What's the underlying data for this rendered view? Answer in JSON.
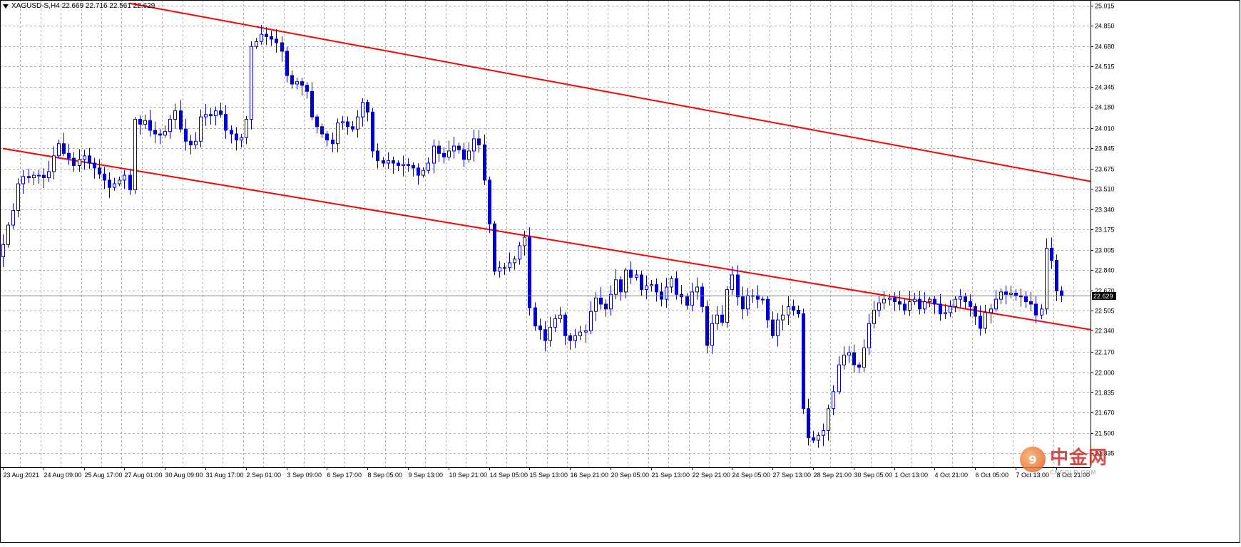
{
  "header": {
    "symbol_line": "XAGUSD-S,H4  22.669 22.716 22.561 22.629"
  },
  "watermark": {
    "logo_glyph": "9",
    "name": "中金网",
    "url": "CNGOLD.COM"
  },
  "colors": {
    "candle": "#0000cc",
    "trendline": "#ff0000",
    "grid": "#b0b0b0",
    "current_price_line": "#708090",
    "current_price_label_bg": "#000000",
    "current_price_label_text": "#ffffff"
  },
  "chart_data": {
    "type": "candlestick",
    "symbol": "XAGUSD-S",
    "timeframe": "H4",
    "ohlc_header": {
      "open": 22.669,
      "high": 22.716,
      "low": 22.561,
      "close": 22.629
    },
    "current_price": 22.629,
    "current_price_label": "22.629",
    "ylim": [
      21.36,
      25.05
    ],
    "y_ticks": [
      "25.015",
      "24.850",
      "24.680",
      "24.515",
      "24.345",
      "24.180",
      "24.010",
      "23.845",
      "23.675",
      "23.510",
      "23.340",
      "23.175",
      "23.005",
      "22.840",
      "22.670",
      "22.505",
      "22.340",
      "22.170",
      "22.000",
      "21.835",
      "21.670",
      "21.500",
      "21.335"
    ],
    "x_labels": [
      "23 Aug 2021",
      "24 Aug 09:00",
      "25 Aug 17:00",
      "27 Aug 01:00",
      "30 Aug 09:00",
      "31 Aug 17:00",
      "2 Sep 01:00",
      "3 Sep 09:00",
      "6 Sep 17:00",
      "8 Sep 05:00",
      "9 Sep 13:00",
      "10 Sep 21:00",
      "14 Sep 05:00",
      "15 Sep 13:00",
      "16 Sep 21:00",
      "20 Sep 05:00",
      "21 Sep 13:00",
      "22 Sep 21:00",
      "24 Sep 05:00",
      "27 Sep 13:00",
      "28 Sep 21:00",
      "30 Sep 05:00",
      "1 Oct 13:00",
      "4 Oct 21:00",
      "6 Oct 05:00",
      "7 Oct 13:00",
      "8 Oct 21:00"
    ],
    "bars_per_label": 8,
    "closes": [
      23.05,
      23.21,
      23.33,
      23.55,
      23.61,
      23.6,
      23.62,
      23.62,
      23.6,
      23.65,
      23.78,
      23.88,
      23.8,
      23.76,
      23.7,
      23.75,
      23.78,
      23.72,
      23.68,
      23.63,
      23.58,
      23.52,
      23.55,
      23.58,
      23.62,
      23.5,
      24.08,
      24.04,
      24.07,
      23.99,
      23.96,
      23.95,
      23.98,
      24.08,
      24.15,
      24.0,
      23.9,
      23.87,
      23.9,
      24.1,
      24.12,
      24.11,
      24.15,
      24.12,
      23.99,
      23.96,
      23.91,
      23.93,
      24.08,
      24.68,
      24.72,
      24.78,
      24.76,
      24.74,
      24.71,
      24.64,
      24.44,
      24.37,
      24.39,
      24.36,
      24.31,
      24.1,
      24.02,
      23.96,
      23.91,
      23.88,
      24.05,
      24.06,
      24.02,
      24.0,
      24.1,
      24.22,
      24.14,
      23.82,
      23.74,
      23.72,
      23.74,
      23.72,
      23.7,
      23.71,
      23.7,
      23.68,
      23.62,
      23.66,
      23.72,
      23.86,
      23.8,
      23.77,
      23.82,
      23.86,
      23.83,
      23.75,
      23.82,
      23.92,
      23.87,
      23.58,
      23.22,
      22.83,
      22.86,
      22.86,
      22.9,
      22.93,
      23.04,
      23.11,
      22.53,
      22.38,
      22.35,
      22.26,
      22.37,
      22.44,
      22.47,
      22.3,
      22.26,
      22.3,
      22.33,
      22.34,
      22.5,
      22.61,
      22.56,
      22.52,
      22.64,
      22.76,
      22.66,
      22.84,
      22.78,
      22.8,
      22.68,
      22.71,
      22.72,
      22.66,
      22.6,
      22.7,
      22.77,
      22.64,
      22.62,
      22.55,
      22.66,
      22.7,
      22.54,
      22.22,
      22.4,
      22.47,
      22.41,
      22.68,
      22.8,
      22.62,
      22.52,
      22.63,
      22.63,
      22.6,
      22.6,
      22.43,
      22.3,
      22.43,
      22.47,
      22.54,
      22.51,
      22.48,
      21.7,
      21.46,
      21.44,
      21.48,
      21.52,
      21.7,
      21.84,
      22.06,
      22.14,
      22.16,
      22.06,
      22.04,
      22.2,
      22.4,
      22.51,
      22.57,
      22.6,
      22.61,
      22.58,
      22.56,
      22.51,
      22.58,
      22.6,
      22.52,
      22.58,
      22.6,
      22.56,
      22.48,
      22.49,
      22.54,
      22.6,
      22.62,
      22.58,
      22.54,
      22.46,
      22.36,
      22.49,
      22.52,
      22.6,
      22.66,
      22.64,
      22.65,
      22.63,
      22.62,
      22.58,
      22.56,
      22.47,
      22.52,
      23.02,
      22.92,
      22.669,
      22.629
    ],
    "trendlines": [
      {
        "name": "upper channel line",
        "p1": {
          "bar": 25,
          "price": 25.035
        },
        "p2": {
          "bar": 263,
          "price": 23.57
        }
      },
      {
        "name": "lower channel line",
        "p1": {
          "bar": 0,
          "price": 23.84
        },
        "p2": {
          "bar": 263,
          "price": 22.35
        }
      }
    ],
    "grid": true,
    "legend": "none"
  }
}
